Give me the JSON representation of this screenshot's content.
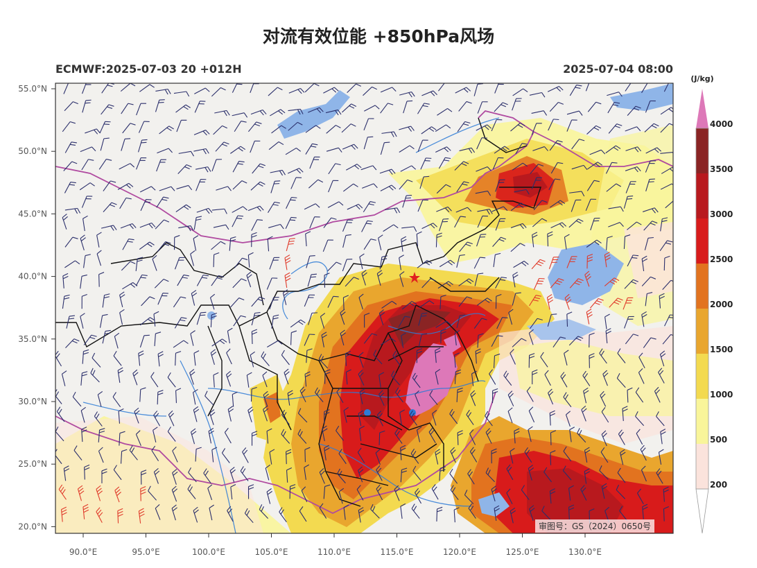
{
  "header": {
    "title": "对流有效位能 +850hPa风场",
    "model_run": "ECMWF:2025-07-03 20 +012H",
    "valid_time": "2025-07-04 08:00"
  },
  "colorbar": {
    "unit": "(J/kg)",
    "levels": [
      "200",
      "500",
      "1000",
      "1500",
      "2000",
      "2500",
      "3000",
      "3500",
      "4000"
    ],
    "colors": [
      "#ffffff",
      "#fbe3dc",
      "#f9f59a",
      "#f3da50",
      "#e9a62e",
      "#e2731f",
      "#d81b1b",
      "#b8191e",
      "#8a2424",
      "#dd78b8"
    ]
  },
  "axes": {
    "lat_labels": [
      "55.0°N",
      "50.0°N",
      "45.0°N",
      "40.0°N",
      "35.0°N",
      "30.0°N",
      "25.0°N",
      "20.0°N"
    ],
    "lon_labels": [
      "90.0°E",
      "95.0°E",
      "100.0°E",
      "105.0°E",
      "110.0°E",
      "115.0°E",
      "120.0°E",
      "125.0°E",
      "130.0°E"
    ]
  },
  "map": {
    "land_color": "#f2f1ee",
    "water_color": "#8fb5e8",
    "river_color": "#2e7bd6",
    "province_border_color": "#111111",
    "national_border_color": "#b04aa0",
    "barb_color": "#2b2f6b",
    "strong_barb_color": "#e03a2a",
    "marker": "star"
  },
  "approval_stamp": "审图号：GS（2024）0650号"
}
